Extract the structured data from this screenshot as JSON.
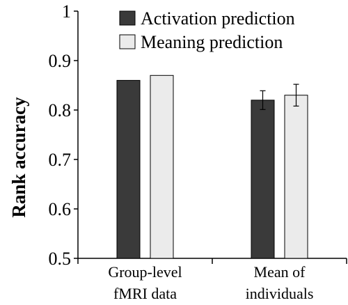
{
  "chart_data": {
    "type": "bar",
    "categories": [
      "Group-level fMRI data",
      "Mean of individuals"
    ],
    "category_lines": [
      [
        "Group-level",
        "fMRI data"
      ],
      [
        "Mean of",
        "individuals"
      ]
    ],
    "series": [
      {
        "name": "Activation prediction",
        "color": "#3a3a3a",
        "values": [
          0.86,
          0.82
        ],
        "errors": [
          null,
          0.019
        ]
      },
      {
        "name": "Meaning prediction",
        "color": "#ebebeb",
        "values": [
          0.87,
          0.83
        ],
        "errors": [
          null,
          0.022
        ]
      }
    ],
    "ylabel": "Rank accuracy",
    "xlabel": "",
    "title": "",
    "ylim": [
      0.5,
      1.0
    ],
    "yticks": [
      0.5,
      0.6,
      0.7,
      0.8,
      0.9,
      1.0
    ],
    "ytick_labels": [
      "0.5",
      "0.6",
      "0.7",
      "0.8",
      "0.9",
      "1"
    ],
    "grid": false,
    "legend_position": "top-right"
  }
}
